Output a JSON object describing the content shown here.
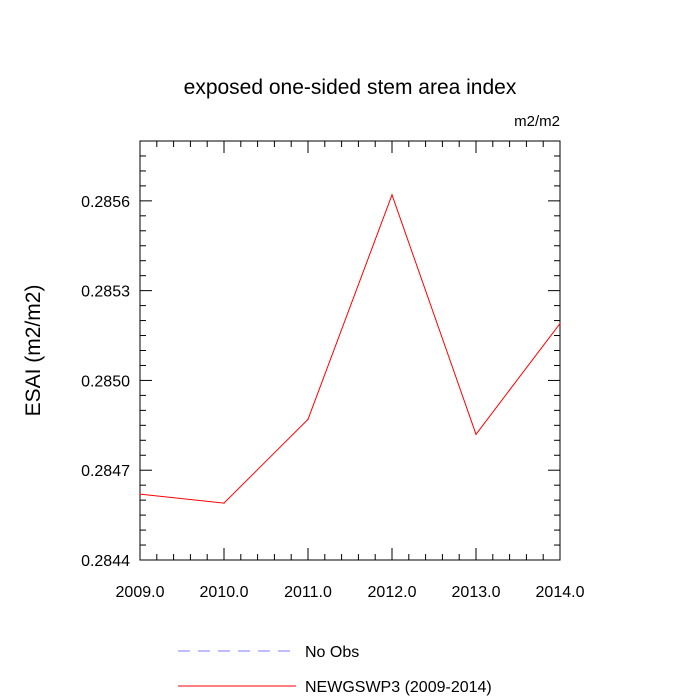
{
  "chart_data": {
    "type": "line",
    "title": "exposed one-sided stem area index",
    "units_label": "m2/m2",
    "xlabel": "",
    "ylabel": "ESAI  (m2/m2)",
    "xlim": [
      2009.0,
      2014.0
    ],
    "ylim": [
      0.2844,
      0.2858
    ],
    "x_ticks": [
      2009.0,
      2010.0,
      2011.0,
      2012.0,
      2013.0,
      2014.0
    ],
    "x_tick_labels": [
      "2009.0",
      "2010.0",
      "2011.0",
      "2012.0",
      "2013.0",
      "2014.0"
    ],
    "y_ticks": [
      0.2844,
      0.2847,
      0.285,
      0.2853,
      0.2856
    ],
    "y_tick_labels": [
      "0.2844",
      "0.2847",
      "0.2850",
      "0.2853",
      "0.2856"
    ],
    "grid": false,
    "legend_position": "bottom",
    "series": [
      {
        "name": "No Obs",
        "color": "#7b7bff",
        "style": "dashed",
        "x": [],
        "values": []
      },
      {
        "name": "NEWGSWP3 (2009-2014)",
        "color": "#ff0000",
        "style": "solid",
        "x": [
          2009.0,
          2010.0,
          2011.0,
          2012.0,
          2013.0,
          2014.0
        ],
        "values": [
          0.28462,
          0.28459,
          0.28487,
          0.28562,
          0.28482,
          0.28519
        ]
      }
    ]
  }
}
